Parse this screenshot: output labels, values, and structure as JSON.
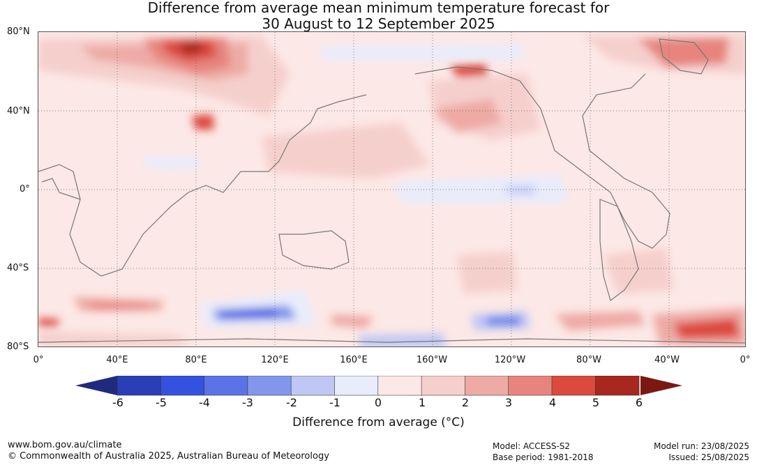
{
  "title": {
    "line1": "Difference from average mean minimum temperature forecast for",
    "line2": "30 August to 12 September 2025"
  },
  "map": {
    "lat_labels": [
      "80°N",
      "40°N",
      "0°",
      "40°S",
      "80°S"
    ],
    "lon_labels": [
      "0°",
      "40°E",
      "80°E",
      "120°E",
      "160°E",
      "160°W",
      "120°W",
      "80°W",
      "40°W",
      "0°"
    ]
  },
  "colorbar": {
    "ticks": [
      "-6",
      "-5",
      "-4",
      "-3",
      "-2",
      "-1",
      "0",
      "1",
      "2",
      "3",
      "4",
      "5",
      "6"
    ],
    "colors": [
      "#1f2a80",
      "#2a3fb5",
      "#3451e0",
      "#5a73e6",
      "#8296ec",
      "#bfc8f4",
      "#e8ecfb",
      "#fce8e6",
      "#f5cfcc",
      "#eeaaa5",
      "#e6847d",
      "#dc4a3c",
      "#a8271f",
      "#7a1914"
    ],
    "label": "Difference from average (°C)"
  },
  "footer": {
    "website": "www.bom.gov.au/climate",
    "copyright": "© Commonwealth of Australia 2025, Australian Bureau of Meteorology",
    "model": "Model: ACCESS-S2",
    "base_period": "Base period: 1981-2018",
    "model_run": "Model run: 23/08/2025",
    "issued": "Issued: 25/08/2025"
  }
}
